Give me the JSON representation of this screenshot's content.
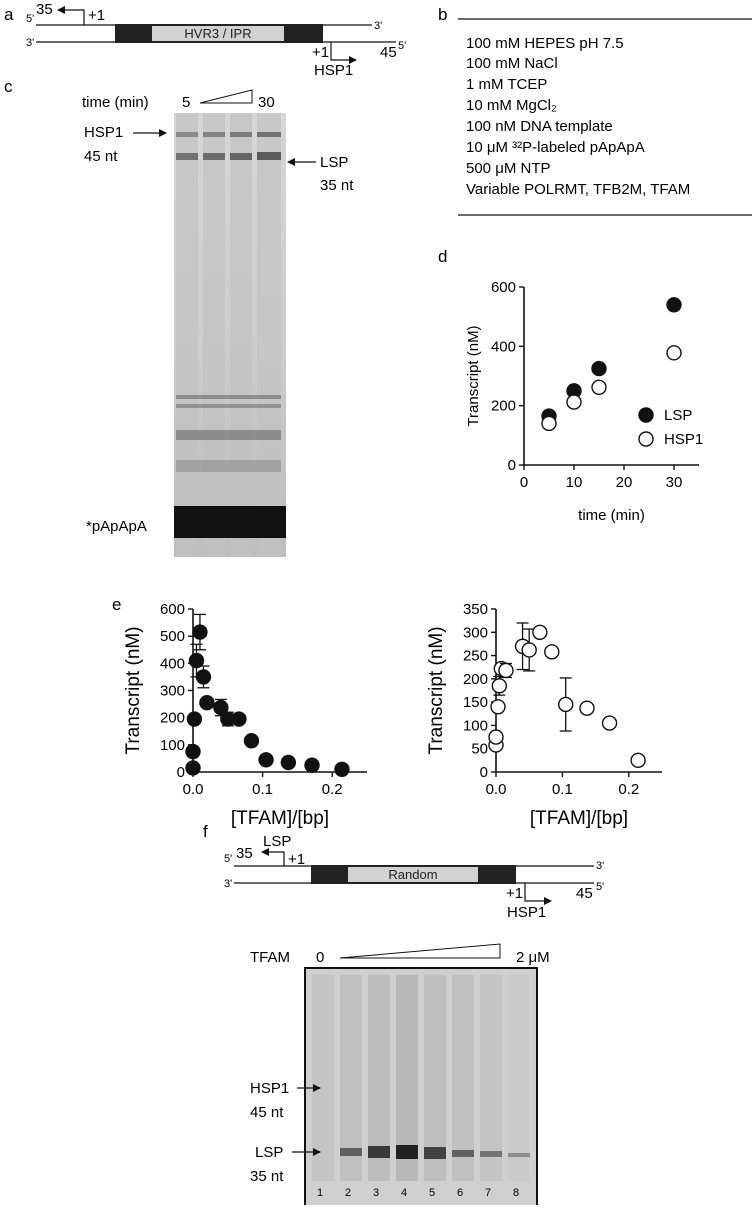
{
  "figure": {
    "panel_a": {
      "letter": "a",
      "top_5prime": "5'",
      "top_3prime": "3'",
      "bottom_3prime": "3'",
      "bottom_5prime": "5'",
      "lsp_end": "35",
      "lsp_start": "+1",
      "box_label": "HVR3 / IPR",
      "hsp_start": "+1",
      "hsp_end": "45",
      "hsp_name": "HSP1"
    },
    "panel_b": {
      "letter": "b",
      "conditions": [
        "100 mM HEPES pH 7.5",
        "100 mM NaCl",
        "1 mM TCEP",
        "10 mM MgCl₂",
        "100 nM DNA template",
        "10 μM ³²P-labeled pApApA",
        "500 μM NTP",
        "Variable POLRMT, TFB2M, TFAM"
      ]
    },
    "panel_c": {
      "letter": "c",
      "time_label": "time (min)",
      "time_start": "5",
      "time_end": "30",
      "band_hsp_name": "HSP1",
      "band_hsp_len": "45 nt",
      "band_lsp_name": "LSP",
      "band_lsp_len": "35 nt",
      "primer_label": "*pApApA"
    },
    "panel_f": {
      "letter": "f",
      "top_5prime": "5'",
      "top_3prime": "3'",
      "bottom_3prime": "3'",
      "bottom_5prime": "5'",
      "lsp_name": "LSP",
      "lsp_end": "35",
      "lsp_start": "+1",
      "box_label": "Random",
      "hsp_start": "+1",
      "hsp_end": "45",
      "hsp_name": "HSP1",
      "tfam_label": "TFAM",
      "tfam_start": "0",
      "tfam_end": "2 μM",
      "band_hsp_name": "HSP1",
      "band_hsp_len": "45 nt",
      "band_lsp_name": "LSP",
      "band_lsp_len": "35 nt",
      "lanes": [
        "1",
        "2",
        "3",
        "4",
        "5",
        "6",
        "7",
        "8"
      ]
    },
    "panel_e_letter": "e"
  },
  "chart_data": [
    {
      "id": "d",
      "type": "scatter",
      "panel": "d",
      "xlabel": "time (min)",
      "ylabel": "Transcript (nM)",
      "xlim": [
        0,
        35
      ],
      "ylim": [
        0,
        600
      ],
      "xticks": [
        0,
        10,
        20,
        30
      ],
      "yticks": [
        0,
        200,
        400,
        600
      ],
      "legend": "right",
      "series": [
        {
          "name": "LSP",
          "marker": "filled",
          "color": "#000000",
          "x": [
            5,
            10,
            15,
            30
          ],
          "y": [
            165,
            250,
            325,
            540
          ]
        },
        {
          "name": "HSP1",
          "marker": "open",
          "color": "#000000",
          "x": [
            5,
            10,
            15,
            30
          ],
          "y": [
            140,
            212,
            262,
            378
          ]
        }
      ]
    },
    {
      "id": "e-left",
      "type": "scatter",
      "panel": "e",
      "xlabel": "[TFAM]/[bp]",
      "ylabel": "Transcript (nM)",
      "xlim": [
        0,
        0.25
      ],
      "ylim": [
        0,
        600
      ],
      "xticks": [
        0.0,
        0.1,
        0.2
      ],
      "yticks": [
        0,
        100,
        200,
        300,
        400,
        500,
        600
      ],
      "series": [
        {
          "name": "",
          "marker": "filled",
          "color": "#000000",
          "x": [
            0.0,
            0.0,
            0.002,
            0.005,
            0.01,
            0.015,
            0.02,
            0.04,
            0.05,
            0.066,
            0.084,
            0.105,
            0.137,
            0.171,
            0.214
          ],
          "y": [
            15,
            75,
            195,
            410,
            515,
            350,
            255,
            237,
            195,
            195,
            115,
            45,
            35,
            25,
            10
          ],
          "err": [
            0,
            0,
            0,
            60,
            65,
            40,
            0,
            30,
            25,
            0,
            0,
            0,
            0,
            0,
            0
          ]
        }
      ]
    },
    {
      "id": "e-right",
      "type": "scatter",
      "panel": "e",
      "xlabel": "[TFAM]/[bp]",
      "ylabel": "Transcript (nM)",
      "xlim": [
        0,
        0.25
      ],
      "ylim": [
        0,
        350
      ],
      "xticks": [
        0.0,
        0.1,
        0.2
      ],
      "yticks": [
        0,
        50,
        100,
        150,
        200,
        250,
        300,
        350
      ],
      "series": [
        {
          "name": "",
          "marker": "open",
          "color": "#000000",
          "x": [
            0.0,
            0.0,
            0.003,
            0.005,
            0.008,
            0.015,
            0.04,
            0.05,
            0.066,
            0.084,
            0.105,
            0.137,
            0.171,
            0.214
          ],
          "y": [
            58,
            75,
            140,
            185,
            222,
            218,
            270,
            262,
            300,
            258,
            145,
            137,
            105,
            25
          ],
          "err": [
            0,
            0,
            0,
            20,
            0,
            15,
            50,
            45,
            0,
            0,
            57,
            0,
            0,
            0
          ]
        }
      ]
    }
  ]
}
